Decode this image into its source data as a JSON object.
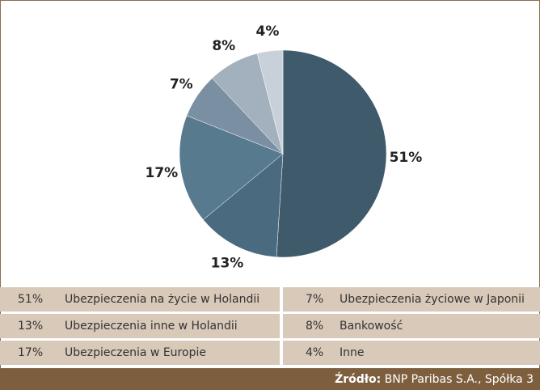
{
  "chart_data": {
    "type": "pie",
    "categories": [
      "Ubezpieczenia na życie w Holandii",
      "Ubezpieczenia inne w Holandii",
      "Ubezpieczenia w Europie",
      "Ubezpieczenia życiowe w Japonii",
      "Bankowość",
      "Inne"
    ],
    "values": [
      51,
      13,
      17,
      7,
      8,
      4
    ],
    "value_labels": [
      "51%",
      "13%",
      "17%",
      "7%",
      "8%",
      "4%"
    ],
    "colors": [
      "#3f5b6b",
      "#4a6a7f",
      "#587a8f",
      "#7a8fa1",
      "#a2b1bd",
      "#c8d1d9"
    ],
    "source_label": "Źródło:",
    "source": "BNP Paribas S.A., Spółka 3"
  }
}
